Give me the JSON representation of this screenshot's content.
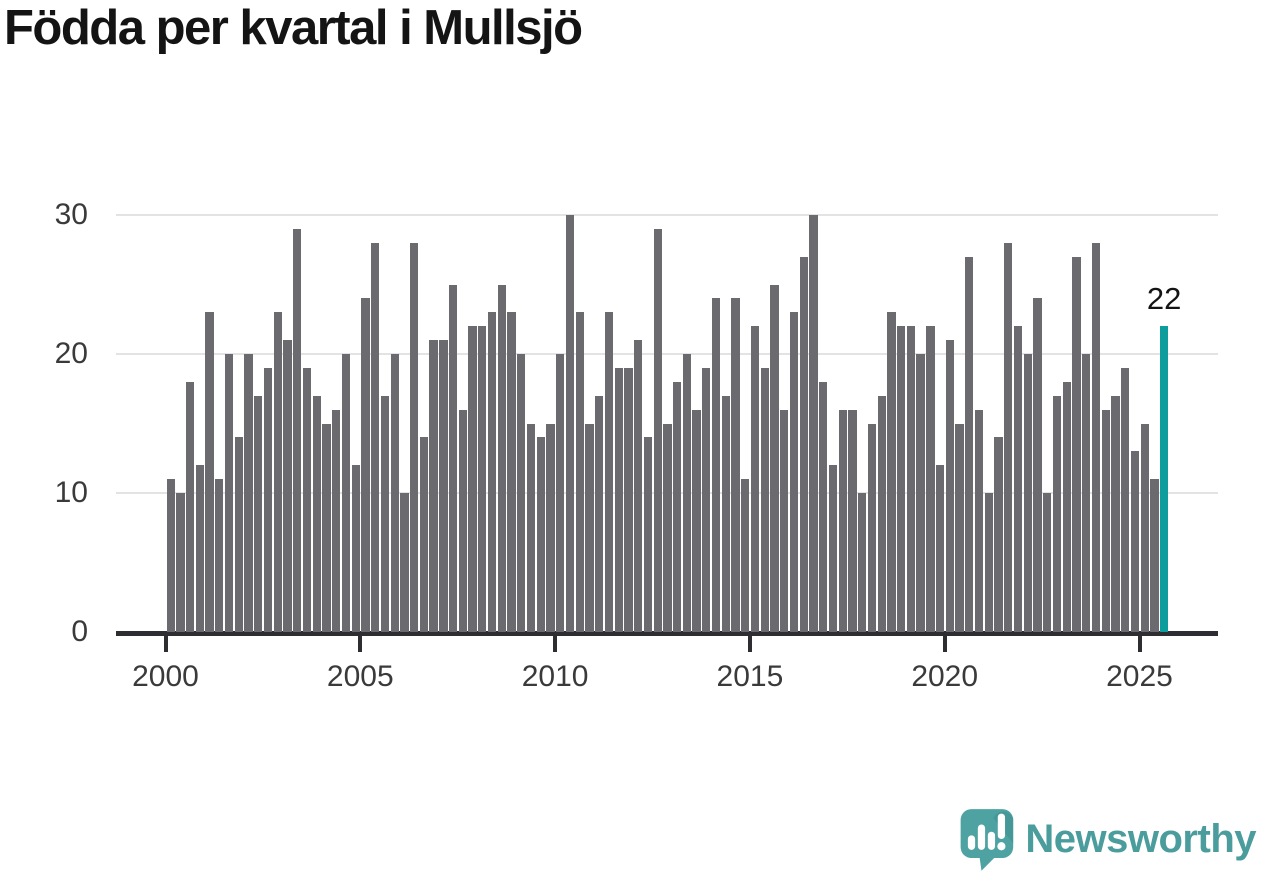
{
  "title": "Födda per kvartal i Mullsjö",
  "chart_data": {
    "type": "bar",
    "title": "Födda per kvartal i Mullsjö",
    "categories": [
      "2000Q1",
      "2000Q2",
      "2000Q3",
      "2000Q4",
      "2001Q1",
      "2001Q2",
      "2001Q3",
      "2001Q4",
      "2002Q1",
      "2002Q2",
      "2002Q3",
      "2002Q4",
      "2003Q1",
      "2003Q2",
      "2003Q3",
      "2003Q4",
      "2004Q1",
      "2004Q2",
      "2004Q3",
      "2004Q4",
      "2005Q1",
      "2005Q2",
      "2005Q3",
      "2005Q4",
      "2006Q1",
      "2006Q2",
      "2006Q3",
      "2006Q4",
      "2007Q1",
      "2007Q2",
      "2007Q3",
      "2007Q4",
      "2008Q1",
      "2008Q2",
      "2008Q3",
      "2008Q4",
      "2009Q1",
      "2009Q2",
      "2009Q3",
      "2009Q4",
      "2010Q1",
      "2010Q2",
      "2010Q3",
      "2010Q4",
      "2011Q1",
      "2011Q2",
      "2011Q3",
      "2011Q4",
      "2012Q1",
      "2012Q2",
      "2012Q3",
      "2012Q4",
      "2013Q1",
      "2013Q2",
      "2013Q3",
      "2013Q4",
      "2014Q1",
      "2014Q2",
      "2014Q3",
      "2014Q4",
      "2015Q1",
      "2015Q2",
      "2015Q3",
      "2015Q4",
      "2016Q1",
      "2016Q2",
      "2016Q3",
      "2016Q4",
      "2017Q1",
      "2017Q2",
      "2017Q3",
      "2017Q4",
      "2018Q1",
      "2018Q2",
      "2018Q3",
      "2018Q4",
      "2019Q1",
      "2019Q2",
      "2019Q3",
      "2019Q4",
      "2020Q1",
      "2020Q2",
      "2020Q3",
      "2020Q4",
      "2021Q1",
      "2021Q2",
      "2021Q3",
      "2021Q4",
      "2022Q1",
      "2022Q2",
      "2022Q3",
      "2022Q4",
      "2023Q1",
      "2023Q2",
      "2023Q3",
      "2023Q4",
      "2024Q1",
      "2024Q2",
      "2024Q3",
      "2024Q4",
      "2025Q1",
      "2025Q2",
      "2025Q3"
    ],
    "values": [
      11,
      10,
      18,
      12,
      23,
      11,
      20,
      14,
      20,
      17,
      19,
      23,
      21,
      29,
      19,
      17,
      15,
      16,
      20,
      12,
      24,
      28,
      17,
      20,
      10,
      28,
      14,
      21,
      21,
      25,
      16,
      22,
      22,
      23,
      25,
      23,
      20,
      15,
      14,
      15,
      20,
      30,
      23,
      15,
      17,
      23,
      19,
      19,
      21,
      14,
      29,
      15,
      18,
      20,
      16,
      19,
      24,
      17,
      24,
      11,
      22,
      19,
      25,
      16,
      23,
      27,
      30,
      18,
      12,
      16,
      16,
      10,
      15,
      17,
      23,
      22,
      22,
      20,
      22,
      12,
      21,
      15,
      27,
      16,
      10,
      14,
      28,
      22,
      20,
      24,
      10,
      17,
      18,
      27,
      20,
      28,
      16,
      17,
      19,
      13,
      15,
      11,
      22
    ],
    "highlight": {
      "index": 102,
      "label": "22",
      "color": "#0d9d9d"
    },
    "bar_color": "#6a6a6f",
    "xlabel": "",
    "ylabel": "",
    "ylim": [
      0,
      30
    ],
    "yticks": [
      0,
      10,
      20,
      30
    ],
    "xticks": [
      "2000",
      "2005",
      "2010",
      "2015",
      "2020",
      "2025"
    ],
    "grid": "horizontal",
    "legend": "none"
  },
  "annotation": {
    "text": "22"
  },
  "logo": {
    "text": "Newsworthy"
  },
  "colors": {
    "background": "#ffffff",
    "bar": "#6a6a6f",
    "highlight": "#0d9d9d",
    "axis": "#2e2e32",
    "gridline": "#e3e3e3",
    "tick_label": "#3a3a3a",
    "title_text": "#141414",
    "logo_teal": "#4a9d9c",
    "logo_fold": "#3e8f8e"
  }
}
